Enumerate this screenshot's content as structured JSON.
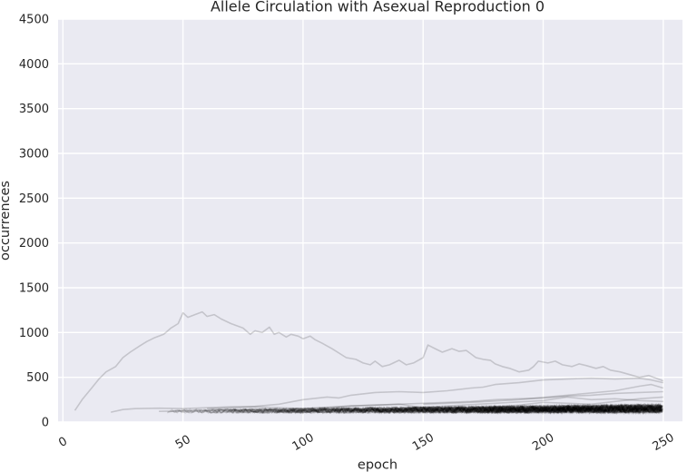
{
  "chart_data": {
    "type": "line",
    "title": "Allele Circulation with Asexual Reproduction 0",
    "xlabel": "epoch",
    "ylabel": "occurrences",
    "xlim": [
      -2,
      258
    ],
    "ylim": [
      0,
      4500
    ],
    "x_ticks": [
      0,
      50,
      100,
      150,
      200,
      250
    ],
    "x_tick_labels": [
      "0",
      "50",
      "100",
      "150",
      "200",
      "250"
    ],
    "y_ticks": [
      0,
      500,
      1000,
      1500,
      2000,
      2500,
      3000,
      3500,
      4000,
      4500
    ],
    "y_tick_labels": [
      "0",
      "500",
      "1000",
      "1500",
      "2000",
      "2500",
      "3000",
      "3500",
      "4000",
      "4500"
    ],
    "grid": true,
    "background": "#eaeaf2",
    "grid_color": "#ffffff",
    "line_color": "#000000",
    "dense_band": {
      "x_start": 40,
      "x_end": 250,
      "y_min": 100,
      "y_max": 200
    },
    "series": [
      {
        "x": [
          5,
          8,
          12,
          15,
          18,
          22,
          25,
          28,
          32,
          35,
          38,
          42,
          45,
          48,
          50,
          52,
          55,
          58,
          60,
          63,
          66,
          70,
          75,
          78,
          80,
          83,
          86,
          88,
          90,
          93,
          95,
          98,
          100,
          103,
          105,
          108,
          112,
          118,
          122,
          125,
          128,
          130,
          133,
          136,
          140,
          143,
          146,
          150,
          152,
          155,
          158,
          162,
          165,
          168,
          170,
          172,
          175,
          178,
          180,
          183,
          186,
          190,
          194,
          196,
          198,
          202,
          205,
          208,
          212,
          215,
          218,
          222,
          225,
          228,
          232,
          236,
          240,
          244,
          248,
          250
        ],
        "y": [
          130,
          250,
          380,
          480,
          560,
          620,
          720,
          780,
          850,
          900,
          940,
          980,
          1050,
          1100,
          1220,
          1170,
          1200,
          1230,
          1180,
          1200,
          1150,
          1100,
          1050,
          980,
          1020,
          1000,
          1060,
          980,
          1000,
          950,
          980,
          960,
          930,
          960,
          920,
          880,
          820,
          720,
          700,
          660,
          640,
          680,
          620,
          640,
          690,
          640,
          660,
          720,
          860,
          820,
          780,
          820,
          790,
          800,
          760,
          720,
          700,
          690,
          650,
          620,
          600,
          560,
          580,
          620,
          680,
          660,
          680,
          640,
          620,
          650,
          630,
          600,
          620,
          580,
          560,
          530,
          500,
          520,
          480,
          460
        ]
      },
      {
        "x": [
          20,
          25,
          30,
          40,
          50,
          60,
          70,
          80,
          90,
          100,
          110,
          115,
          120,
          130,
          140,
          150,
          160,
          170,
          175,
          180,
          190,
          200,
          210,
          220,
          230,
          240,
          245,
          250
        ],
        "y": [
          110,
          140,
          150,
          155,
          150,
          160,
          170,
          175,
          200,
          250,
          280,
          270,
          300,
          330,
          340,
          330,
          350,
          380,
          390,
          420,
          440,
          470,
          480,
          490,
          480,
          490,
          470,
          440
        ]
      },
      {
        "x": [
          40,
          60,
          80,
          100,
          110,
          120,
          130,
          140,
          150,
          160,
          170,
          180,
          190,
          200,
          210,
          220,
          230,
          240,
          250
        ],
        "y": [
          120,
          130,
          140,
          150,
          160,
          180,
          190,
          200,
          210,
          220,
          230,
          250,
          260,
          270,
          290,
          300,
          320,
          330,
          340
        ]
      },
      {
        "x": [
          60,
          80,
          100,
          120,
          140,
          150,
          160,
          180,
          200,
          210,
          220,
          230,
          240,
          250
        ],
        "y": [
          150,
          170,
          150,
          180,
          200,
          160,
          180,
          210,
          240,
          280,
          250,
          260,
          240,
          230
        ]
      },
      {
        "x": [
          90,
          110,
          130,
          150,
          170,
          190,
          200,
          220,
          240,
          250
        ],
        "y": [
          120,
          140,
          130,
          170,
          150,
          190,
          220,
          200,
          260,
          280
        ]
      },
      {
        "x": [
          150,
          170,
          190,
          210,
          230,
          240,
          245,
          250
        ],
        "y": [
          200,
          220,
          250,
          300,
          350,
          400,
          420,
          380
        ]
      }
    ]
  }
}
